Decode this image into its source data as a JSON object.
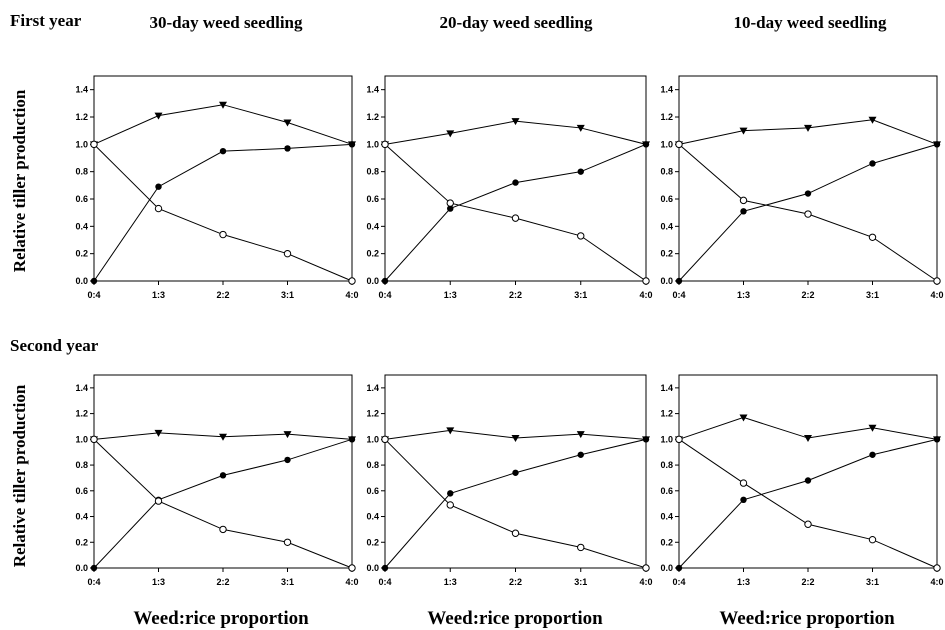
{
  "figure": {
    "row_titles": [
      "First year",
      "Second year"
    ],
    "column_titles": [
      "30-day weed seedling",
      "20-day weed seedling",
      "10-day weed seedling"
    ],
    "ylabel": "Relative tiller production",
    "xlabel": "Weed:rice proportion"
  },
  "chart_data": [
    {
      "type": "line",
      "row": "First year",
      "column": "30-day weed seedling",
      "categories": [
        "0:4",
        "1:3",
        "2:2",
        "3:1",
        "4:0"
      ],
      "ylim": [
        0,
        1.5
      ],
      "yticks": [
        "0.0",
        "0.2",
        "0.4",
        "0.6",
        "0.8",
        "1.0",
        "1.2",
        "1.4"
      ],
      "series": [
        {
          "marker": "triangle-down",
          "values": [
            1.0,
            1.21,
            1.29,
            1.16,
            1.0
          ]
        },
        {
          "marker": "filled-circle",
          "values": [
            0.0,
            0.69,
            0.95,
            0.97,
            1.0
          ]
        },
        {
          "marker": "open-circle",
          "values": [
            1.0,
            0.53,
            0.34,
            0.2,
            0.0
          ]
        }
      ]
    },
    {
      "type": "line",
      "row": "First year",
      "column": "20-day weed seedling",
      "categories": [
        "0:4",
        "1:3",
        "2:2",
        "3:1",
        "4:0"
      ],
      "ylim": [
        0,
        1.5
      ],
      "yticks": [
        "0.0",
        "0.2",
        "0.4",
        "0.6",
        "0.8",
        "1.0",
        "1.2",
        "1.4"
      ],
      "series": [
        {
          "marker": "triangle-down",
          "values": [
            1.0,
            1.08,
            1.17,
            1.12,
            1.0
          ]
        },
        {
          "marker": "filled-circle",
          "values": [
            0.0,
            0.53,
            0.72,
            0.8,
            1.0
          ]
        },
        {
          "marker": "open-circle",
          "values": [
            1.0,
            0.57,
            0.46,
            0.33,
            0.0
          ]
        }
      ]
    },
    {
      "type": "line",
      "row": "First year",
      "column": "10-day weed seedling",
      "categories": [
        "0:4",
        "1:3",
        "2:2",
        "3:1",
        "4:0"
      ],
      "ylim": [
        0,
        1.5
      ],
      "yticks": [
        "0.0",
        "0.2",
        "0.4",
        "0.6",
        "0.8",
        "1.0",
        "1.2",
        "1.4"
      ],
      "series": [
        {
          "marker": "triangle-down",
          "values": [
            1.0,
            1.1,
            1.12,
            1.18,
            1.0
          ]
        },
        {
          "marker": "filled-circle",
          "values": [
            0.0,
            0.51,
            0.64,
            0.86,
            1.0
          ]
        },
        {
          "marker": "open-circle",
          "values": [
            1.0,
            0.59,
            0.49,
            0.32,
            0.0
          ]
        }
      ]
    },
    {
      "type": "line",
      "row": "Second year",
      "column": "30-day weed seedling",
      "categories": [
        "0:4",
        "1:3",
        "2:2",
        "3:1",
        "4:0"
      ],
      "ylim": [
        0,
        1.5
      ],
      "yticks": [
        "0.0",
        "0.2",
        "0.4",
        "0.6",
        "0.8",
        "1.0",
        "1.2",
        "1.4"
      ],
      "series": [
        {
          "marker": "triangle-down",
          "values": [
            1.0,
            1.05,
            1.02,
            1.04,
            1.0
          ]
        },
        {
          "marker": "filled-circle",
          "values": [
            0.0,
            0.53,
            0.72,
            0.84,
            1.0
          ]
        },
        {
          "marker": "open-circle",
          "values": [
            1.0,
            0.52,
            0.3,
            0.2,
            0.0
          ]
        }
      ]
    },
    {
      "type": "line",
      "row": "Second year",
      "column": "20-day weed seedling",
      "categories": [
        "0:4",
        "1:3",
        "2:2",
        "3:1",
        "4:0"
      ],
      "ylim": [
        0,
        1.5
      ],
      "yticks": [
        "0.0",
        "0.2",
        "0.4",
        "0.6",
        "0.8",
        "1.0",
        "1.2",
        "1.4"
      ],
      "series": [
        {
          "marker": "triangle-down",
          "values": [
            1.0,
            1.07,
            1.01,
            1.04,
            1.0
          ]
        },
        {
          "marker": "filled-circle",
          "values": [
            0.0,
            0.58,
            0.74,
            0.88,
            1.0
          ]
        },
        {
          "marker": "open-circle",
          "values": [
            1.0,
            0.49,
            0.27,
            0.16,
            0.0
          ]
        }
      ]
    },
    {
      "type": "line",
      "row": "Second year",
      "column": "10-day weed seedling",
      "categories": [
        "0:4",
        "1:3",
        "2:2",
        "3:1",
        "4:0"
      ],
      "ylim": [
        0,
        1.5
      ],
      "yticks": [
        "0.0",
        "0.2",
        "0.4",
        "0.6",
        "0.8",
        "1.0",
        "1.2",
        "1.4"
      ],
      "series": [
        {
          "marker": "triangle-down",
          "values": [
            1.0,
            1.17,
            1.01,
            1.09,
            1.0
          ]
        },
        {
          "marker": "filled-circle",
          "values": [
            0.0,
            0.53,
            0.68,
            0.88,
            1.0
          ]
        },
        {
          "marker": "open-circle",
          "values": [
            1.0,
            0.66,
            0.34,
            0.22,
            0.0
          ]
        }
      ]
    }
  ]
}
